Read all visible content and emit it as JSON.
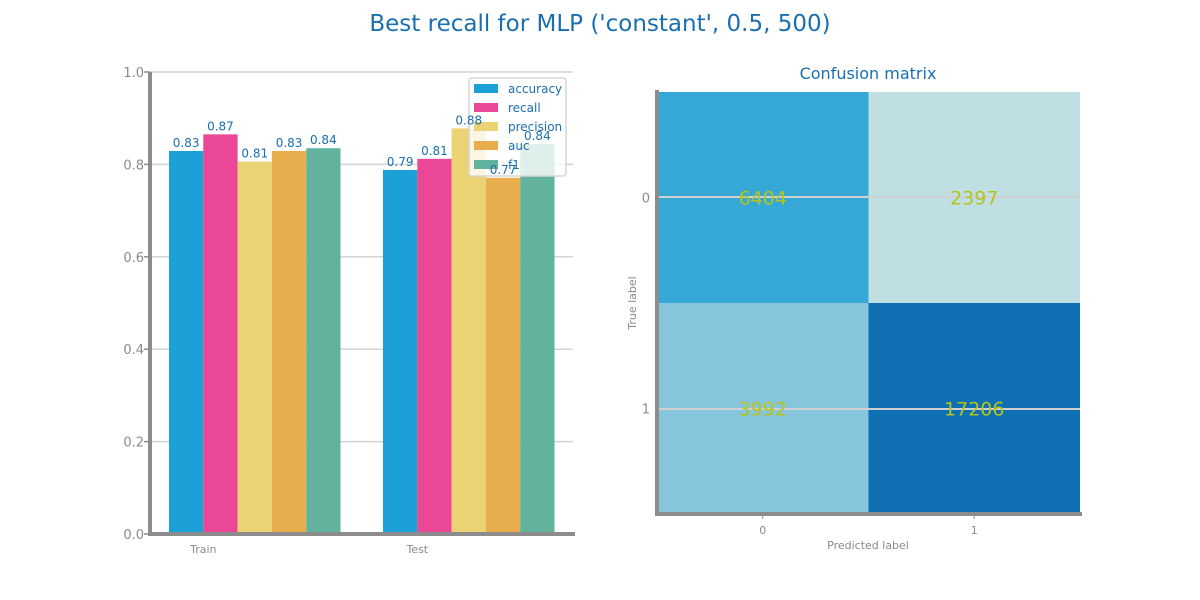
{
  "title": "Best recall for MLP ('constant', 0.5, 500)",
  "chart_data": [
    {
      "type": "bar",
      "categories": [
        "Train",
        "Test"
      ],
      "series": [
        {
          "name": "accuracy",
          "color": "#1ca0d8",
          "values": [
            0.829,
            0.788
          ],
          "labels": [
            "0.83",
            "0.79"
          ]
        },
        {
          "name": "recall",
          "color": "#ea4797",
          "values": [
            0.865,
            0.812
          ],
          "labels": [
            "0.87",
            "0.81"
          ]
        },
        {
          "name": "precision",
          "color": "#ebd373",
          "values": [
            0.806,
            0.878
          ],
          "labels": [
            "0.81",
            "0.88"
          ]
        },
        {
          "name": "auc",
          "color": "#e8ad4c",
          "values": [
            0.829,
            0.771
          ],
          "labels": [
            "0.83",
            "0.77"
          ]
        },
        {
          "name": "f1",
          "color": "#62b39d",
          "values": [
            0.835,
            0.844
          ],
          "labels": [
            "0.84",
            "0.84"
          ]
        }
      ],
      "ylim": [
        0,
        1.0
      ],
      "yticks": [
        "0.0",
        "0.2",
        "0.4",
        "0.6",
        "0.8",
        "1.0"
      ],
      "grid": true,
      "legend": "top-right"
    },
    {
      "type": "heatmap",
      "title": "Confusion matrix",
      "xlabel": "Predicted label",
      "ylabel": "True label",
      "x_ticks": [
        "0",
        "1"
      ],
      "y_ticks": [
        "0",
        "1"
      ],
      "values": [
        [
          6404,
          2397
        ],
        [
          3992,
          17206
        ]
      ],
      "cell_colors": [
        [
          "#36a8d6",
          "#c0dfe3"
        ],
        [
          "#87c5dc",
          "#0e6fb2"
        ]
      ]
    }
  ]
}
